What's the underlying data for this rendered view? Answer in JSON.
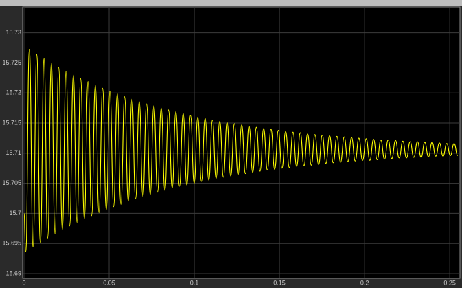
{
  "chart_data": {
    "type": "line",
    "x": [
      0,
      0.001,
      0.00315,
      0.0053,
      0.00745,
      0.0096,
      0.01175,
      0.0139,
      0.01605,
      0.0182,
      0.02035,
      0.0225,
      0.02465,
      0.0268,
      0.02895,
      0.0311,
      0.03325,
      0.0354,
      0.03755,
      0.0397,
      0.04185,
      0.044,
      0.04615,
      0.0483,
      0.05045,
      0.0526,
      0.05475,
      0.0569,
      0.05905,
      0.0612,
      0.06335,
      0.0655,
      0.06765,
      0.0698,
      0.07195,
      0.0741,
      0.07625,
      0.0784,
      0.08055,
      0.0827,
      0.08485,
      0.087,
      0.08915,
      0.0913,
      0.09345,
      0.0956,
      0.09775,
      0.0999,
      0.10205,
      0.1042,
      0.10635,
      0.1085,
      0.11065,
      0.1128,
      0.11495,
      0.1171,
      0.11925,
      0.1214,
      0.12355,
      0.1257,
      0.12785,
      0.13,
      0.13215,
      0.1343,
      0.13645,
      0.1386,
      0.14075,
      0.1429,
      0.14505,
      0.1472,
      0.14935,
      0.1515,
      0.15365,
      0.1558,
      0.15795,
      0.1601,
      0.16225,
      0.1644,
      0.16655,
      0.1687,
      0.17085,
      0.173,
      0.17515,
      0.1773,
      0.17945,
      0.1816,
      0.18375,
      0.1859,
      0.18805,
      0.1902,
      0.19235,
      0.1945,
      0.19665,
      0.1988,
      0.20095,
      0.2031,
      0.20525,
      0.2074,
      0.20955,
      0.2117,
      0.21385,
      0.216,
      0.21815,
      0.2203,
      0.22245,
      0.2246,
      0.22675,
      0.2289,
      0.23105,
      0.2332,
      0.23535,
      0.2375,
      0.23965,
      0.2418,
      0.24395,
      0.2461,
      0.24825,
      0.2504,
      0.25255,
      0.2547
    ],
    "series": [
      {
        "color": "#ffff00",
        "values": [
          15.7,
          15.6936,
          15.7272,
          15.6944,
          15.7264,
          15.6952,
          15.7257,
          15.6959,
          15.725,
          15.6966,
          15.7243,
          15.6973,
          15.7236,
          15.6979,
          15.723,
          15.6985,
          15.7224,
          15.6991,
          15.7219,
          15.6996,
          15.7213,
          15.7001,
          15.7208,
          15.7006,
          15.7203,
          15.7011,
          15.7199,
          15.7015,
          15.7194,
          15.702,
          15.719,
          15.7024,
          15.7186,
          15.7028,
          15.7182,
          15.7031,
          15.7179,
          15.7035,
          15.7175,
          15.7038,
          15.7172,
          15.7042,
          15.7169,
          15.7045,
          15.7166,
          15.7047,
          15.7163,
          15.705,
          15.716,
          15.7053,
          15.7158,
          15.7055,
          15.7155,
          15.7058,
          15.7153,
          15.706,
          15.7151,
          15.7062,
          15.7149,
          15.7064,
          15.7147,
          15.7066,
          15.7145,
          15.7068,
          15.7143,
          15.707,
          15.7141,
          15.7072,
          15.714,
          15.7073,
          15.7138,
          15.7075,
          15.7136,
          15.7076,
          15.7135,
          15.7078,
          15.7134,
          15.7079,
          15.7132,
          15.708,
          15.7131,
          15.7081,
          15.713,
          15.7083,
          15.7129,
          15.7084,
          15.7128,
          15.7085,
          15.7127,
          15.7086,
          15.7126,
          15.7087,
          15.7125,
          15.7088,
          15.7124,
          15.7088,
          15.7123,
          15.7089,
          15.7122,
          15.709,
          15.7122,
          15.7091,
          15.7121,
          15.7092,
          15.712,
          15.7092,
          15.7119,
          15.7093,
          15.7119,
          15.7093,
          15.7118,
          15.7094,
          15.7118,
          15.7095,
          15.7117,
          15.7095,
          15.7116,
          15.7096,
          15.7116,
          15.7096
        ]
      }
    ],
    "xlim": [
      -0.0008,
      0.256
    ],
    "xticks": [
      0,
      0.05,
      0.1,
      0.15,
      0.2,
      0.25
    ],
    "ylim": [
      15.6892,
      15.7343
    ],
    "yticks": [
      15.69,
      15.695,
      15.7,
      15.705,
      15.71,
      15.715,
      15.72,
      15.725,
      15.73
    ],
    "grid": true
  }
}
